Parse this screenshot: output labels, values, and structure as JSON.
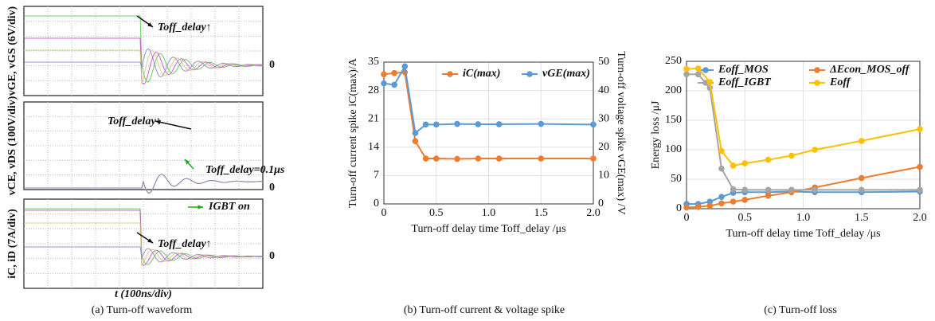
{
  "chart_data": [
    {
      "type": "waveform",
      "panels": [
        {
          "ylabel": "vGE, vGS (6V/div)",
          "zero": "0"
        },
        {
          "ylabel": "vCE, vDS (100V/div)",
          "zero": "0"
        },
        {
          "ylabel": "iC, iD (7A/div)",
          "zero": "0"
        }
      ],
      "annotations": [
        "Toff_delay↑",
        "Toff_delay↑",
        "Toff_delay=0.1μs",
        "IGBT on",
        "Toff_delay↑"
      ],
      "xlabel": "t (100ns/div)",
      "caption": "(a) Turn-off waveform"
    },
    {
      "type": "line",
      "xlabel": "Turn-off delay time Toff_delay /μs",
      "ylabel": "Turn-off current spike iC(max)/A",
      "y2label": "Turn-off voltage spike vGE(max) /V",
      "caption": "(b) Turn-off current & voltage spike",
      "x": [
        0,
        0.1,
        0.2,
        0.3,
        0.4,
        0.5,
        0.7,
        0.9,
        1.1,
        1.5,
        2.0
      ],
      "xlim": [
        0,
        2.0
      ],
      "xticks": [
        0,
        0.5,
        {
          "value": 1,
          "label": "1.0"
        },
        1.5,
        {
          "value": 2,
          "label": "2.0"
        }
      ],
      "ylim": [
        0,
        35
      ],
      "yticks": [
        0,
        7,
        14,
        21,
        28,
        35
      ],
      "y2lim": [
        0,
        50
      ],
      "y2ticks": [
        0,
        10,
        20,
        30,
        40,
        50
      ],
      "grid": true,
      "legend": "top",
      "series": [
        {
          "name": "iC(max)",
          "color": "#ed7d31",
          "values": [
            32,
            32.3,
            32.5,
            15.5,
            11.2,
            11.2,
            11.1,
            11.2,
            11.2,
            11.2,
            11.2
          ]
        },
        {
          "name": "vGE(max)",
          "color": "#5b9bd5",
          "axis": "y2",
          "values": [
            42.5,
            42,
            48.5,
            25,
            28,
            28,
            28.2,
            28.1,
            28.1,
            28.2,
            28
          ]
        }
      ]
    },
    {
      "type": "line",
      "xlabel": "Turn-off delay time Toff_delay /μs",
      "ylabel": "Energy loss /μJ",
      "caption": "(c) Turn-off loss",
      "x": [
        0,
        0.1,
        0.2,
        0.3,
        0.4,
        0.5,
        0.7,
        0.9,
        1.1,
        1.5,
        2.0
      ],
      "xlim": [
        0,
        2.0
      ],
      "xticks": [
        0,
        0.5,
        {
          "value": 1,
          "label": "1.0"
        },
        1.5,
        {
          "value": 2,
          "label": "2.0"
        }
      ],
      "ylim": [
        0,
        250
      ],
      "yticks": [
        0,
        50,
        100,
        150,
        200,
        250
      ],
      "grid": true,
      "legend": "top",
      "series": [
        {
          "name": "Eoff_MOS",
          "color": "#5b9bd5",
          "values": [
            8,
            8,
            12,
            20,
            27,
            28,
            28,
            29,
            28,
            28,
            29
          ]
        },
        {
          "name": "ΔEcon_MOS_off",
          "color": "#ed7d31",
          "values": [
            2,
            3,
            5,
            9,
            12,
            15,
            22,
            28,
            36,
            52,
            71
          ]
        },
        {
          "name": "Eoff_IGBT",
          "color": "#a5a5a5",
          "values": [
            228,
            228,
            205,
            68,
            33,
            32,
            32,
            32,
            32,
            32,
            32
          ]
        },
        {
          "name": "Eoff",
          "color": "#ffc000",
          "values": [
            237,
            238,
            215,
            98,
            73,
            77,
            83,
            90,
            100,
            115,
            135
          ]
        }
      ]
    }
  ]
}
